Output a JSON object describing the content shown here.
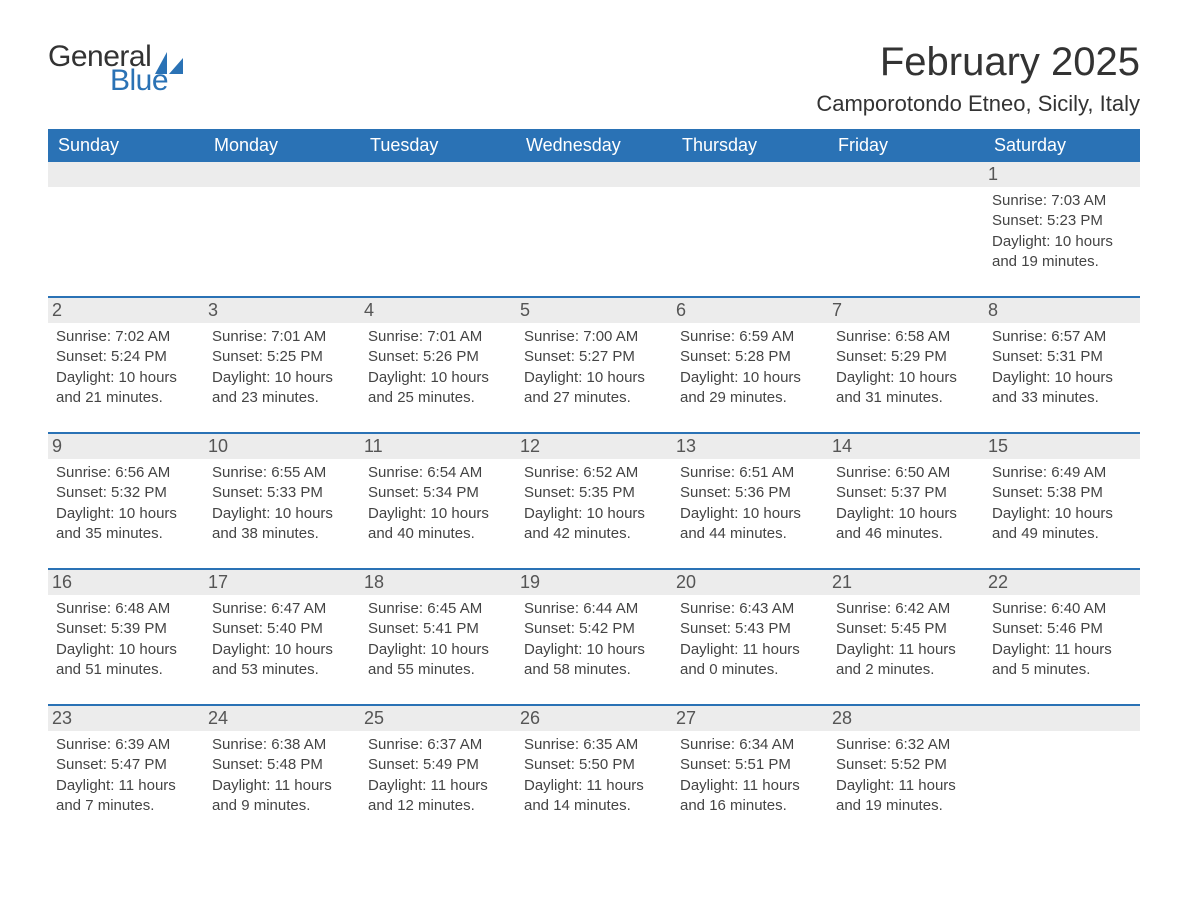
{
  "logo": {
    "text_general": "General",
    "text_blue": "Blue"
  },
  "title": "February 2025",
  "location": "Camporotondo Etneo, Sicily, Italy",
  "colors": {
    "header_bg": "#2a72b5",
    "header_text": "#ffffff",
    "daynum_bg": "#ececec",
    "daynum_text": "#555555",
    "body_text": "#444444",
    "rule": "#2a72b5",
    "page_bg": "#ffffff"
  },
  "typography": {
    "month_title_size": 40,
    "location_size": 22,
    "dow_size": 18,
    "daynum_size": 18,
    "info_size": 15
  },
  "days_of_week": [
    "Sunday",
    "Monday",
    "Tuesday",
    "Wednesday",
    "Thursday",
    "Friday",
    "Saturday"
  ],
  "weeks": [
    [
      null,
      null,
      null,
      null,
      null,
      null,
      {
        "n": "1",
        "sunrise": "7:03 AM",
        "sunset": "5:23 PM",
        "daylight": "10 hours and 19 minutes."
      }
    ],
    [
      {
        "n": "2",
        "sunrise": "7:02 AM",
        "sunset": "5:24 PM",
        "daylight": "10 hours and 21 minutes."
      },
      {
        "n": "3",
        "sunrise": "7:01 AM",
        "sunset": "5:25 PM",
        "daylight": "10 hours and 23 minutes."
      },
      {
        "n": "4",
        "sunrise": "7:01 AM",
        "sunset": "5:26 PM",
        "daylight": "10 hours and 25 minutes."
      },
      {
        "n": "5",
        "sunrise": "7:00 AM",
        "sunset": "5:27 PM",
        "daylight": "10 hours and 27 minutes."
      },
      {
        "n": "6",
        "sunrise": "6:59 AM",
        "sunset": "5:28 PM",
        "daylight": "10 hours and 29 minutes."
      },
      {
        "n": "7",
        "sunrise": "6:58 AM",
        "sunset": "5:29 PM",
        "daylight": "10 hours and 31 minutes."
      },
      {
        "n": "8",
        "sunrise": "6:57 AM",
        "sunset": "5:31 PM",
        "daylight": "10 hours and 33 minutes."
      }
    ],
    [
      {
        "n": "9",
        "sunrise": "6:56 AM",
        "sunset": "5:32 PM",
        "daylight": "10 hours and 35 minutes."
      },
      {
        "n": "10",
        "sunrise": "6:55 AM",
        "sunset": "5:33 PM",
        "daylight": "10 hours and 38 minutes."
      },
      {
        "n": "11",
        "sunrise": "6:54 AM",
        "sunset": "5:34 PM",
        "daylight": "10 hours and 40 minutes."
      },
      {
        "n": "12",
        "sunrise": "6:52 AM",
        "sunset": "5:35 PM",
        "daylight": "10 hours and 42 minutes."
      },
      {
        "n": "13",
        "sunrise": "6:51 AM",
        "sunset": "5:36 PM",
        "daylight": "10 hours and 44 minutes."
      },
      {
        "n": "14",
        "sunrise": "6:50 AM",
        "sunset": "5:37 PM",
        "daylight": "10 hours and 46 minutes."
      },
      {
        "n": "15",
        "sunrise": "6:49 AM",
        "sunset": "5:38 PM",
        "daylight": "10 hours and 49 minutes."
      }
    ],
    [
      {
        "n": "16",
        "sunrise": "6:48 AM",
        "sunset": "5:39 PM",
        "daylight": "10 hours and 51 minutes."
      },
      {
        "n": "17",
        "sunrise": "6:47 AM",
        "sunset": "5:40 PM",
        "daylight": "10 hours and 53 minutes."
      },
      {
        "n": "18",
        "sunrise": "6:45 AM",
        "sunset": "5:41 PM",
        "daylight": "10 hours and 55 minutes."
      },
      {
        "n": "19",
        "sunrise": "6:44 AM",
        "sunset": "5:42 PM",
        "daylight": "10 hours and 58 minutes."
      },
      {
        "n": "20",
        "sunrise": "6:43 AM",
        "sunset": "5:43 PM",
        "daylight": "11 hours and 0 minutes."
      },
      {
        "n": "21",
        "sunrise": "6:42 AM",
        "sunset": "5:45 PM",
        "daylight": "11 hours and 2 minutes."
      },
      {
        "n": "22",
        "sunrise": "6:40 AM",
        "sunset": "5:46 PM",
        "daylight": "11 hours and 5 minutes."
      }
    ],
    [
      {
        "n": "23",
        "sunrise": "6:39 AM",
        "sunset": "5:47 PM",
        "daylight": "11 hours and 7 minutes."
      },
      {
        "n": "24",
        "sunrise": "6:38 AM",
        "sunset": "5:48 PM",
        "daylight": "11 hours and 9 minutes."
      },
      {
        "n": "25",
        "sunrise": "6:37 AM",
        "sunset": "5:49 PM",
        "daylight": "11 hours and 12 minutes."
      },
      {
        "n": "26",
        "sunrise": "6:35 AM",
        "sunset": "5:50 PM",
        "daylight": "11 hours and 14 minutes."
      },
      {
        "n": "27",
        "sunrise": "6:34 AM",
        "sunset": "5:51 PM",
        "daylight": "11 hours and 16 minutes."
      },
      {
        "n": "28",
        "sunrise": "6:32 AM",
        "sunset": "5:52 PM",
        "daylight": "11 hours and 19 minutes."
      },
      null
    ]
  ],
  "labels": {
    "sunrise": "Sunrise: ",
    "sunset": "Sunset: ",
    "daylight": "Daylight: "
  }
}
